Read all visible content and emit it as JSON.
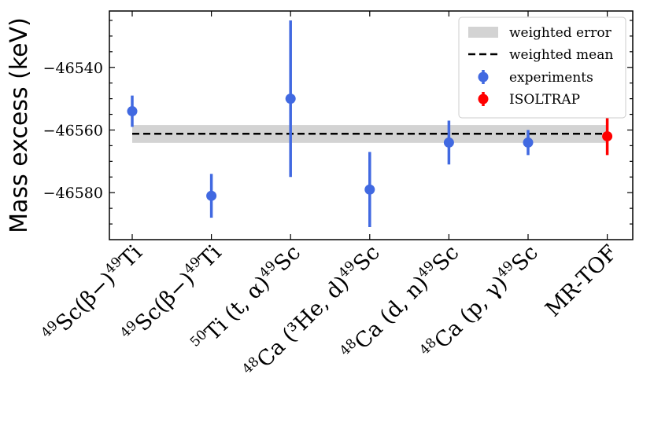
{
  "chart_data": {
    "type": "scatter",
    "title": "",
    "xlabel": "",
    "ylabel": "Mass excess (keV)",
    "ylim": [
      -46595,
      -46522
    ],
    "yticks": [
      -46540,
      -46560,
      -46580
    ],
    "ytick_labels": [
      "−46540",
      "−46560",
      "−46580"
    ],
    "grid": false,
    "legend_position": "top-right",
    "categories": [
      {
        "base": "Sc(β−)",
        "sup_pre": "49",
        "sup_post": "49",
        "tail": "Ti"
      },
      {
        "base": "Sc(β−)",
        "sup_pre": "49",
        "sup_post": "49",
        "tail": "Ti"
      },
      {
        "base": "Ti (t, α)",
        "sup_pre": "50",
        "sup_post": "49",
        "tail": "Sc"
      },
      {
        "base": "Ca (³He, d)",
        "sup_pre": "48",
        "sup_post": "49",
        "tail": "Sc"
      },
      {
        "base": "Ca (d, n)",
        "sup_pre": "48",
        "sup_post": "49",
        "tail": "Sc"
      },
      {
        "base": "Ca (p, γ)",
        "sup_pre": "48",
        "sup_post": "49",
        "tail": "Sc"
      },
      {
        "base": "MR-TOF",
        "sup_pre": "",
        "sup_post": "",
        "tail": ""
      }
    ],
    "series": [
      {
        "name": "experiments",
        "color": "#4169e1",
        "points": [
          {
            "index": 0,
            "value": -46554,
            "error": 5
          },
          {
            "index": 1,
            "value": -46581,
            "error": 7
          },
          {
            "index": 2,
            "value": -46550,
            "error": 25
          },
          {
            "index": 3,
            "value": -46579,
            "error": 12
          },
          {
            "index": 4,
            "value": -46564,
            "error": 7
          },
          {
            "index": 5,
            "value": -46564,
            "error": 4
          }
        ]
      },
      {
        "name": "ISOLTRAP",
        "color": "#ff0000",
        "points": [
          {
            "index": 6,
            "value": -46562,
            "error": 6
          }
        ]
      }
    ],
    "weighted_mean": {
      "name": "weighted mean",
      "value": -46561.2,
      "color": "#000000"
    },
    "weighted_error": {
      "name": "weighted error",
      "low": -46564.1,
      "high": -46558.4,
      "color": "#d3d3d3"
    },
    "legend": [
      "weighted error",
      "weighted mean",
      "experiments",
      "ISOLTRAP"
    ]
  }
}
